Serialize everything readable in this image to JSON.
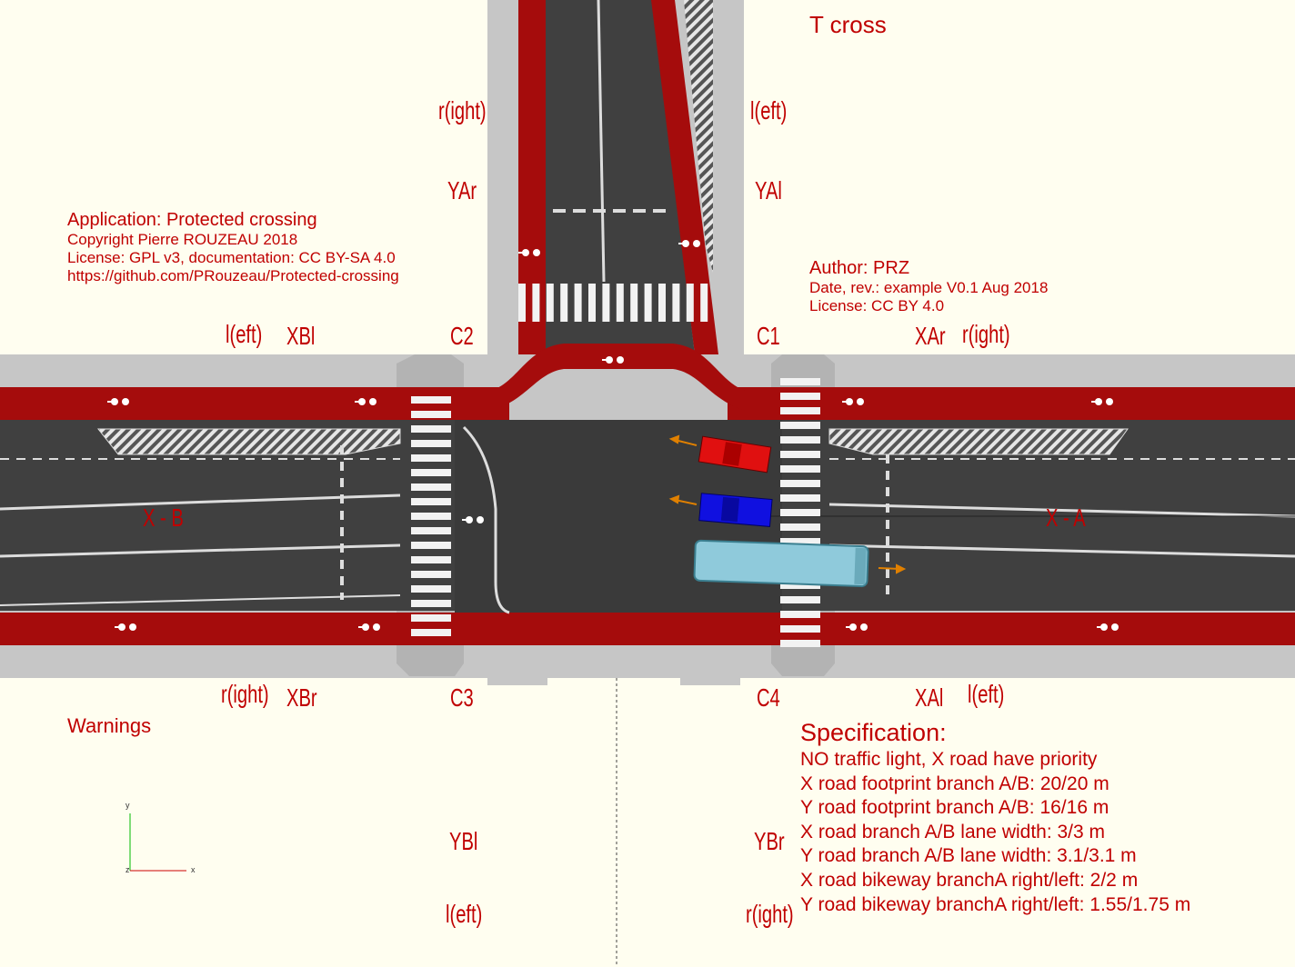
{
  "title": "T cross",
  "app_block": {
    "application": "Application: Protected crossing",
    "copyright": "Copyright Pierre ROUZEAU 2018",
    "license": "License: GPL v3, documentation: CC BY-SA 4.0",
    "url": "https://github.com/PRouzeau/Protected-crossing"
  },
  "author_block": {
    "author": "Author: PRZ",
    "date": "Date, rev.: example V0.1 Aug 2018",
    "license": "License:  CC BY 4.0"
  },
  "road_labels": {
    "yar_side": "r(ight)",
    "yar": "YAr",
    "yal_side": "l(eft)",
    "yal": "YAl",
    "xbl_side": "l(eft)",
    "xbl": "XBl",
    "c2": "C2",
    "c1": "C1",
    "xar": "XAr",
    "xar_side": "r(ight)",
    "xb": "X - B",
    "xa": "X - A",
    "xbr_side": "r(ight)",
    "xbr": "XBr",
    "c3": "C3",
    "c4": "C4",
    "xal": "XAl",
    "xal_side": "l(eft)",
    "ybl": "YBl",
    "ybl_side": "l(eft)",
    "ybr": "YBr",
    "ybr_side": "r(ight)"
  },
  "warnings": "Warnings",
  "specification": {
    "heading": "Specification:",
    "lines": [
      "NO traffic light, X road have priority",
      "X road footprint branch A/B: 20/20 m",
      "Y road footprint branch A/B: 16/16 m",
      "X road branch A/B lane width: 3/3 m",
      "Y road branch A/B lane width: 3.1/3.1 m",
      "X road bikeway branchA right/left: 2/2 m",
      "Y road bikeway branchA right/left: 1.55/1.75 m"
    ]
  },
  "axes": {
    "y": "y",
    "x": "x",
    "z": "z"
  },
  "colors": {
    "bikeway": "#a50c0c",
    "asphalt": "#404040",
    "sidewalk": "#bdbdbd",
    "car_red": "#e01010",
    "car_blue": "#1010e0",
    "bus": "#8fcadb"
  },
  "icons": [
    "bicycle-icon",
    "direction-arrow-icon"
  ]
}
